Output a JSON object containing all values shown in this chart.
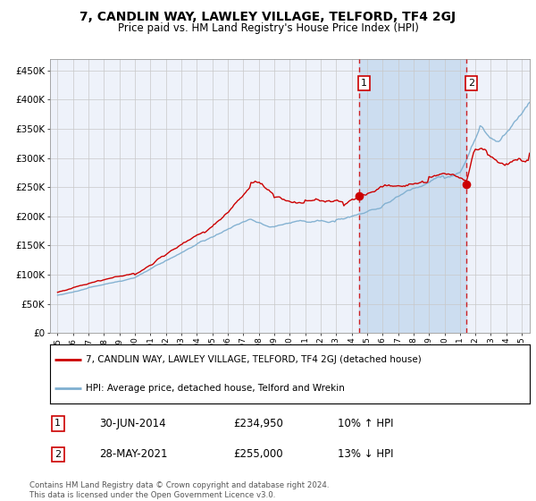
{
  "title": "7, CANDLIN WAY, LAWLEY VILLAGE, TELFORD, TF4 2GJ",
  "subtitle": "Price paid vs. HM Land Registry's House Price Index (HPI)",
  "legend_label_red": "7, CANDLIN WAY, LAWLEY VILLAGE, TELFORD, TF4 2GJ (detached house)",
  "legend_label_blue": "HPI: Average price, detached house, Telford and Wrekin",
  "transaction1_label": "30-JUN-2014",
  "transaction1_price": "£234,950",
  "transaction1_hpi": "10% ↑ HPI",
  "transaction1_date_x": 2014.5,
  "transaction1_value": 234950,
  "transaction2_label": "28-MAY-2021",
  "transaction2_price": "£255,000",
  "transaction2_hpi": "13% ↓ HPI",
  "transaction2_date_x": 2021.42,
  "transaction2_value": 255000,
  "ylabel_ticks": [
    "£0",
    "£50K",
    "£100K",
    "£150K",
    "£200K",
    "£250K",
    "£300K",
    "£350K",
    "£400K",
    "£450K"
  ],
  "ytick_values": [
    0,
    50000,
    100000,
    150000,
    200000,
    250000,
    300000,
    350000,
    400000,
    450000
  ],
  "ylim": [
    0,
    470000
  ],
  "xlim": [
    1994.5,
    2025.5
  ],
  "background_color": "#ffffff",
  "plot_bg_color": "#eef2fa",
  "shade_color": "#ccddf0",
  "grid_color": "#c8c8c8",
  "red_color": "#cc0000",
  "blue_color": "#7fafd0",
  "footnote": "Contains HM Land Registry data © Crown copyright and database right 2024.\nThis data is licensed under the Open Government Licence v3.0."
}
